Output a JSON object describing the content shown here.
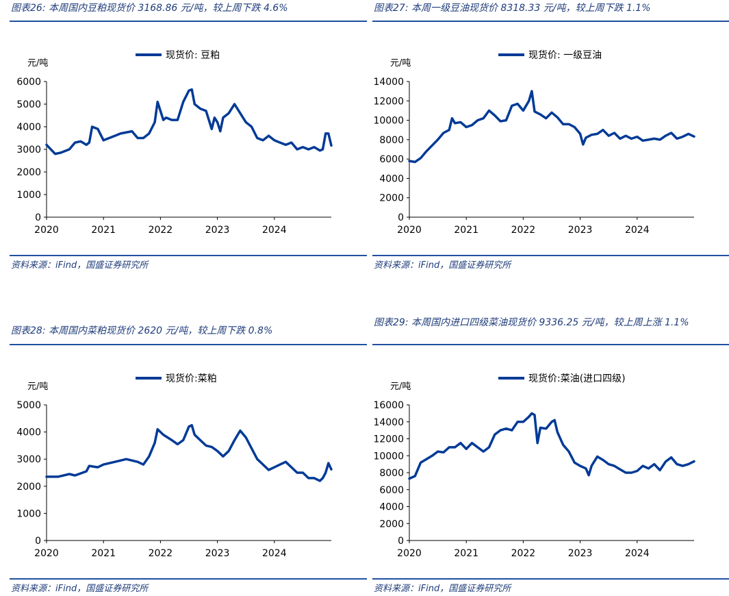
{
  "colors": {
    "line": "#003a96",
    "title": "#1f3c7a",
    "rule": "#1f4fa0"
  },
  "panels": [
    {
      "title": "图表26:  本周国内豆粕现货价 3168.86 元/吨，较上周下跌 4.6%",
      "source": "资料来源：iFind，国盛证券研究所"
    },
    {
      "title": "图表27:  本周一级豆油现货价 8318.33 元/吨，较上周下跌 1.1%",
      "source": "资料来源：iFind，国盛证券研究所"
    },
    {
      "title": "图表28:  本周国内菜粕现货价 2620 元/吨，较上周下跌 0.8%",
      "source": "资料来源：iFind，国盛证券研究所"
    },
    {
      "title": "图表29:  本周国内进口四级菜油现货价  9336.25  元/吨，较上周上涨 1.1%",
      "source": "资料来源：iFind，国盛证券研究所"
    }
  ],
  "chart_data": [
    {
      "type": "line",
      "legend": "现货价:  豆粕",
      "ylabel": "元/吨",
      "ylim": [
        0,
        6000
      ],
      "yticks": [
        0,
        1000,
        2000,
        3000,
        4000,
        5000,
        6000
      ],
      "xlim": [
        2020,
        2025
      ],
      "xticks": [
        "2020",
        "2021",
        "2022",
        "2023",
        "2024"
      ],
      "x": [
        2020.0,
        2020.15,
        2020.25,
        2020.4,
        2020.5,
        2020.6,
        2020.7,
        2020.75,
        2020.8,
        2020.9,
        2021.0,
        2021.2,
        2021.3,
        2021.5,
        2021.6,
        2021.7,
        2021.8,
        2021.9,
        2021.95,
        2022.05,
        2022.1,
        2022.2,
        2022.3,
        2022.4,
        2022.5,
        2022.55,
        2022.6,
        2022.7,
        2022.8,
        2022.9,
        2022.95,
        2023.0,
        2023.05,
        2023.1,
        2023.2,
        2023.3,
        2023.4,
        2023.5,
        2023.6,
        2023.7,
        2023.8,
        2023.9,
        2024.0,
        2024.1,
        2024.2,
        2024.3,
        2024.4,
        2024.5,
        2024.6,
        2024.7,
        2024.8,
        2024.85,
        2024.9,
        2024.95,
        2025.0
      ],
      "y": [
        3200,
        2800,
        2850,
        3000,
        3300,
        3350,
        3200,
        3300,
        4000,
        3900,
        3400,
        3600,
        3700,
        3800,
        3500,
        3500,
        3700,
        4200,
        5100,
        4300,
        4400,
        4300,
        4300,
        5100,
        5600,
        5650,
        5000,
        4800,
        4700,
        3900,
        4400,
        4200,
        3800,
        4400,
        4600,
        5000,
        4600,
        4200,
        4000,
        3500,
        3400,
        3600,
        3400,
        3300,
        3200,
        3300,
        3000,
        3100,
        3000,
        3100,
        2950,
        3000,
        3700,
        3700,
        3170
      ]
    },
    {
      "type": "line",
      "legend": "现货价:  一级豆油",
      "ylabel": "元/吨",
      "ylim": [
        0,
        14000
      ],
      "yticks": [
        0,
        2000,
        4000,
        6000,
        8000,
        10000,
        12000,
        14000
      ],
      "xlim": [
        2020,
        2025
      ],
      "xticks": [
        "2020",
        "2021",
        "2022",
        "2023",
        "2024"
      ],
      "x": [
        2020.0,
        2020.1,
        2020.2,
        2020.3,
        2020.4,
        2020.5,
        2020.6,
        2020.7,
        2020.75,
        2020.8,
        2020.9,
        2021.0,
        2021.1,
        2021.2,
        2021.3,
        2021.4,
        2021.5,
        2021.6,
        2021.7,
        2021.8,
        2021.9,
        2022.0,
        2022.1,
        2022.15,
        2022.2,
        2022.3,
        2022.4,
        2022.5,
        2022.6,
        2022.7,
        2022.8,
        2022.9,
        2023.0,
        2023.05,
        2023.1,
        2023.2,
        2023.3,
        2023.4,
        2023.5,
        2023.6,
        2023.7,
        2023.8,
        2023.9,
        2024.0,
        2024.1,
        2024.2,
        2024.3,
        2024.4,
        2024.5,
        2024.6,
        2024.7,
        2024.8,
        2024.9,
        2025.0
      ],
      "y": [
        5800,
        5700,
        6100,
        6800,
        7400,
        8000,
        8700,
        9000,
        10200,
        9700,
        9800,
        9300,
        9500,
        10000,
        10200,
        11000,
        10500,
        9900,
        10000,
        11500,
        11700,
        11000,
        12000,
        13000,
        10900,
        10600,
        10200,
        10800,
        10300,
        9600,
        9600,
        9300,
        8600,
        7500,
        8200,
        8500,
        8600,
        9000,
        8400,
        8700,
        8100,
        8400,
        8100,
        8300,
        7900,
        8000,
        8100,
        8000,
        8400,
        8700,
        8100,
        8300,
        8600,
        8320
      ]
    },
    {
      "type": "line",
      "legend": "现货价:菜粕",
      "ylabel": "元/吨",
      "ylim": [
        0,
        5000
      ],
      "yticks": [
        0,
        1000,
        2000,
        3000,
        4000,
        5000
      ],
      "xlim": [
        2020,
        2025
      ],
      "xticks": [
        "2020",
        "2021",
        "2022",
        "2023",
        "2024"
      ],
      "x": [
        2020.0,
        2020.2,
        2020.4,
        2020.5,
        2020.7,
        2020.75,
        2020.9,
        2021.0,
        2021.2,
        2021.4,
        2021.6,
        2021.7,
        2021.8,
        2021.9,
        2021.95,
        2022.05,
        2022.2,
        2022.3,
        2022.4,
        2022.5,
        2022.55,
        2022.6,
        2022.7,
        2022.8,
        2022.9,
        2023.0,
        2023.1,
        2023.2,
        2023.3,
        2023.4,
        2023.5,
        2023.6,
        2023.7,
        2023.8,
        2023.9,
        2024.0,
        2024.1,
        2024.2,
        2024.3,
        2024.4,
        2024.5,
        2024.6,
        2024.7,
        2024.8,
        2024.85,
        2024.9,
        2024.95,
        2025.0
      ],
      "y": [
        2350,
        2350,
        2450,
        2400,
        2550,
        2750,
        2700,
        2800,
        2900,
        3000,
        2900,
        2800,
        3100,
        3600,
        4100,
        3900,
        3700,
        3550,
        3700,
        4200,
        4250,
        3900,
        3700,
        3500,
        3450,
        3300,
        3100,
        3300,
        3700,
        4050,
        3800,
        3400,
        3000,
        2800,
        2600,
        2700,
        2800,
        2900,
        2700,
        2500,
        2500,
        2300,
        2300,
        2200,
        2300,
        2500,
        2850,
        2620
      ]
    },
    {
      "type": "line",
      "legend": "现货价:菜油(进口四级)",
      "ylabel": "元/吨",
      "ylim": [
        0,
        16000
      ],
      "yticks": [
        0,
        2000,
        4000,
        6000,
        8000,
        10000,
        12000,
        14000,
        16000
      ],
      "xlim": [
        2020,
        2025
      ],
      "xticks": [
        "2020",
        "2021",
        "2022",
        "2023",
        "2024"
      ],
      "x": [
        2020.0,
        2020.1,
        2020.2,
        2020.3,
        2020.4,
        2020.5,
        2020.6,
        2020.7,
        2020.8,
        2020.9,
        2021.0,
        2021.1,
        2021.2,
        2021.3,
        2021.4,
        2021.5,
        2021.6,
        2021.7,
        2021.8,
        2021.9,
        2022.0,
        2022.1,
        2022.15,
        2022.2,
        2022.25,
        2022.3,
        2022.4,
        2022.5,
        2022.55,
        2022.6,
        2022.7,
        2022.8,
        2022.9,
        2023.0,
        2023.1,
        2023.15,
        2023.2,
        2023.3,
        2023.4,
        2023.5,
        2023.6,
        2023.7,
        2023.8,
        2023.9,
        2024.0,
        2024.1,
        2024.2,
        2024.3,
        2024.4,
        2024.5,
        2024.6,
        2024.7,
        2024.8,
        2024.9,
        2025.0
      ],
      "y": [
        7300,
        7600,
        9200,
        9600,
        10000,
        10500,
        10400,
        11000,
        11000,
        11500,
        10800,
        11500,
        11000,
        10500,
        11000,
        12500,
        13000,
        13200,
        13000,
        14000,
        14000,
        14600,
        15000,
        14800,
        11500,
        13300,
        13200,
        14000,
        14200,
        12800,
        11300,
        10500,
        9200,
        8800,
        8500,
        7700,
        8800,
        9900,
        9500,
        9000,
        8800,
        8400,
        8000,
        8000,
        8200,
        8800,
        8500,
        9000,
        8300,
        9300,
        9800,
        9000,
        8800,
        9000,
        9340
      ]
    }
  ]
}
